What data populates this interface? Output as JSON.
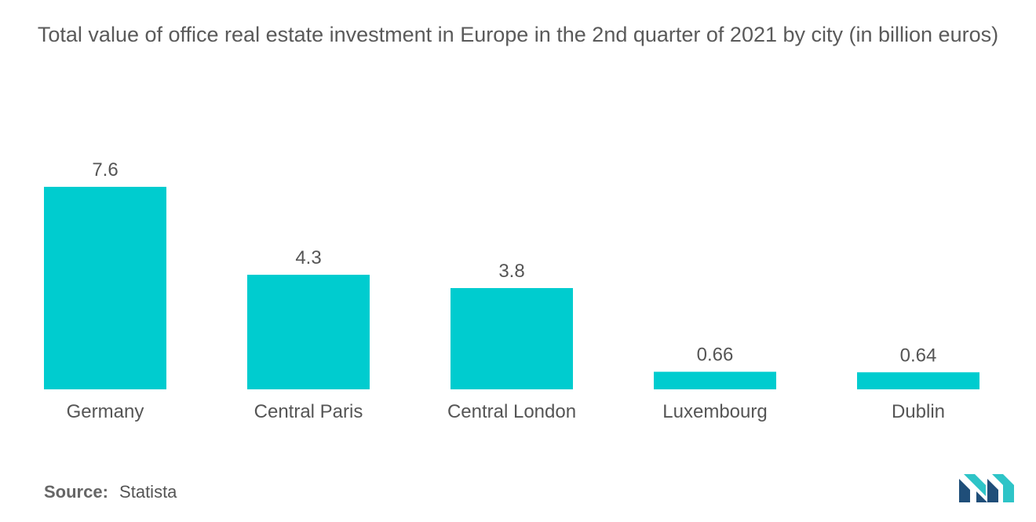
{
  "chart_data": {
    "type": "bar",
    "title": "Total value of office real estate investment in Europe in the 2nd quarter of 2021 by city (in billion euros)",
    "categories": [
      "Germany",
      "Central Paris",
      "Central London",
      "Luxembourg",
      "Dublin"
    ],
    "values": [
      7.6,
      4.3,
      3.8,
      0.66,
      0.64
    ],
    "value_labels": [
      "7.6",
      "4.3",
      "3.8",
      "0.66",
      "0.64"
    ],
    "xlabel": "",
    "ylabel": "",
    "ylim": [
      0,
      7.6
    ],
    "grid": false,
    "legend": false,
    "bar_color": "#00cccf"
  },
  "source": {
    "label": "Source:",
    "value": "Statista"
  },
  "logo": {
    "icon": "mordor-intelligence-logo-icon",
    "colors": [
      "#1f4e79",
      "#2ec4c7"
    ]
  }
}
